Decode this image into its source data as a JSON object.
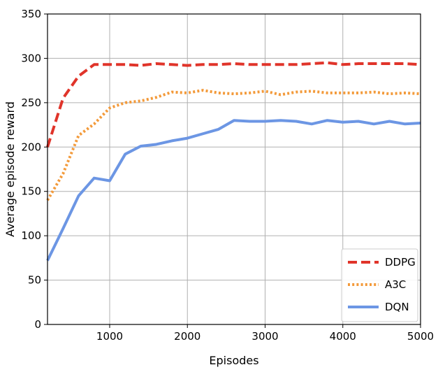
{
  "chart_data": {
    "type": "line",
    "xlabel": "Episodes",
    "ylabel": "Average episode reward",
    "xlim": [
      200,
      5000
    ],
    "ylim": [
      0,
      350
    ],
    "xticks": [
      1000,
      2000,
      3000,
      4000,
      5000
    ],
    "yticks": [
      0,
      50,
      100,
      150,
      200,
      250,
      300,
      350
    ],
    "grid": true,
    "legend_position": "bottom-right",
    "series": [
      {
        "name": "DDPG",
        "color": "#e0342a",
        "style": "dashed",
        "x": [
          200,
          400,
          600,
          800,
          1000,
          1200,
          1400,
          1600,
          1800,
          2000,
          2200,
          2400,
          2600,
          2800,
          3000,
          3200,
          3400,
          3600,
          3800,
          4000,
          4200,
          4400,
          4600,
          4800,
          5000
        ],
        "y": [
          200,
          255,
          280,
          293,
          293,
          293,
          292,
          294,
          293,
          292,
          293,
          293,
          294,
          293,
          293,
          293,
          293,
          294,
          295,
          293,
          294,
          294,
          294,
          294,
          293
        ]
      },
      {
        "name": "A3C",
        "color": "#f39a3a",
        "style": "dotted",
        "x": [
          200,
          400,
          600,
          800,
          1000,
          1200,
          1400,
          1600,
          1800,
          2000,
          2200,
          2400,
          2600,
          2800,
          3000,
          3200,
          3400,
          3600,
          3800,
          4000,
          4200,
          4400,
          4600,
          4800,
          5000
        ],
        "y": [
          140,
          170,
          213,
          226,
          244,
          250,
          252,
          256,
          262,
          261,
          264,
          261,
          260,
          261,
          263,
          259,
          262,
          263,
          261,
          261,
          261,
          262,
          260,
          261,
          260
        ]
      },
      {
        "name": "DQN",
        "color": "#6c96e4",
        "style": "solid",
        "x": [
          200,
          400,
          600,
          800,
          1000,
          1200,
          1400,
          1600,
          1800,
          2000,
          2200,
          2400,
          2600,
          2800,
          3000,
          3200,
          3400,
          3600,
          3800,
          4000,
          4200,
          4400,
          4600,
          4800,
          5000
        ],
        "y": [
          72,
          108,
          145,
          165,
          162,
          192,
          201,
          203,
          207,
          210,
          215,
          220,
          230,
          229,
          229,
          230,
          229,
          226,
          230,
          228,
          229,
          226,
          229,
          226,
          227
        ]
      }
    ]
  }
}
